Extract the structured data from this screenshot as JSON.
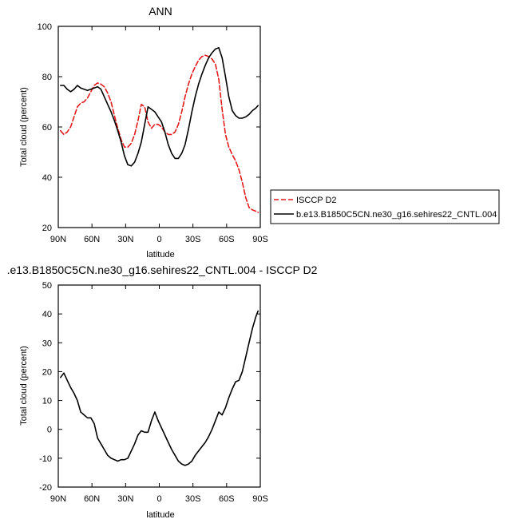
{
  "chart_data": [
    {
      "type": "line",
      "title": "ANN",
      "xlabel": "latitude",
      "ylabel": "Total cloud (percent)",
      "xlim": [
        90,
        -90
      ],
      "ylim": [
        20,
        100
      ],
      "x_ticks": [
        90,
        60,
        30,
        0,
        -30,
        -60,
        -90
      ],
      "x_tick_labels": [
        "90N",
        "60N",
        "30N",
        "0",
        "30S",
        "60S",
        "90S"
      ],
      "y_ticks": [
        20,
        40,
        60,
        80,
        100
      ],
      "y_tick_labels": [
        "20",
        "40",
        "60",
        "80",
        "100"
      ],
      "legend_position": "right",
      "series": [
        {
          "name": "ISCCP D2",
          "color": "#e31a1c",
          "dash": "dashed",
          "x": [
            88,
            85,
            82,
            79,
            76,
            73,
            70,
            67,
            64,
            61,
            58,
            55,
            52,
            49,
            46,
            43,
            40,
            37,
            34,
            31,
            28,
            25,
            22,
            19,
            16,
            13,
            10,
            7,
            4,
            1,
            -2,
            -5,
            -8,
            -11,
            -14,
            -17,
            -20,
            -23,
            -26,
            -29,
            -32,
            -35,
            -38,
            -41,
            -44,
            -47,
            -50,
            -53,
            -56,
            -59,
            -62,
            -65,
            -68,
            -71,
            -74,
            -77,
            -80,
            -83,
            -86,
            -88
          ],
          "y": [
            58.5,
            57.0,
            58.0,
            60.0,
            64.0,
            68.0,
            69.5,
            70.0,
            71.5,
            74.0,
            76.5,
            77.5,
            77.0,
            76.0,
            73.5,
            70.0,
            64.5,
            59.5,
            55.0,
            52.0,
            52.0,
            53.5,
            57.0,
            62.5,
            69.0,
            68.0,
            62.0,
            59.5,
            61.0,
            61.0,
            60.0,
            58.0,
            57.0,
            57.0,
            58.0,
            61.0,
            66.0,
            72.0,
            77.0,
            81.0,
            84.0,
            86.5,
            88.0,
            88.5,
            88.0,
            87.0,
            85.0,
            79.0,
            67.0,
            57.0,
            52.0,
            49.0,
            46.5,
            43.0,
            38.0,
            32.0,
            28.0,
            27.0,
            26.5,
            26.0
          ]
        },
        {
          "name": "b.e13.B1850C5CN.ne30_g16.sehires22_CNTL.004",
          "color": "#000000",
          "dash": "solid",
          "x": [
            88,
            85,
            82,
            79,
            76,
            73,
            70,
            67,
            64,
            61,
            58,
            55,
            52,
            49,
            46,
            43,
            40,
            37,
            34,
            31,
            28,
            25,
            22,
            19,
            16,
            13,
            10,
            7,
            4,
            1,
            -2,
            -5,
            -8,
            -11,
            -14,
            -17,
            -20,
            -23,
            -26,
            -29,
            -32,
            -35,
            -38,
            -41,
            -44,
            -47,
            -50,
            -53,
            -56,
            -59,
            -62,
            -65,
            -68,
            -71,
            -74,
            -77,
            -80,
            -83,
            -86,
            -88
          ],
          "y": [
            76.5,
            76.5,
            75.0,
            74.0,
            75.0,
            76.5,
            75.5,
            75.0,
            74.5,
            75.0,
            75.5,
            76.0,
            75.0,
            72.0,
            69.0,
            66.0,
            62.5,
            58.5,
            54.0,
            48.5,
            45.0,
            44.5,
            46.0,
            49.5,
            54.0,
            61.0,
            68.0,
            67.0,
            66.0,
            64.0,
            62.0,
            58.0,
            53.0,
            49.5,
            47.5,
            47.5,
            49.5,
            53.0,
            59.0,
            66.0,
            72.0,
            77.0,
            81.0,
            84.5,
            87.5,
            89.5,
            91.0,
            91.5,
            87.5,
            80.0,
            72.0,
            66.5,
            64.5,
            63.5,
            63.5,
            64.0,
            65.0,
            66.5,
            67.5,
            68.5
          ]
        }
      ]
    },
    {
      "type": "line",
      "title": ".e13.B1850C5CN.ne30_g16.sehires22_CNTL.004 - ISCCP D2",
      "xlabel": "latitude",
      "ylabel": "Total cloud (percent)",
      "xlim": [
        90,
        -90
      ],
      "ylim": [
        -20,
        50
      ],
      "x_ticks": [
        90,
        60,
        30,
        0,
        -30,
        -60,
        -90
      ],
      "x_tick_labels": [
        "90N",
        "60N",
        "30N",
        "0",
        "30S",
        "60S",
        "90S"
      ],
      "y_ticks": [
        -20,
        -10,
        0,
        10,
        20,
        30,
        40,
        50
      ],
      "y_tick_labels": [
        "-20",
        "-10",
        "0",
        "10",
        "20",
        "30",
        "40",
        "50"
      ],
      "series": [
        {
          "color": "#000000",
          "dash": "solid",
          "x": [
            88,
            85,
            82,
            79,
            76,
            73,
            70,
            67,
            64,
            61,
            58,
            55,
            52,
            49,
            46,
            43,
            40,
            37,
            34,
            31,
            28,
            25,
            22,
            19,
            16,
            13,
            10,
            7,
            4,
            1,
            -2,
            -5,
            -8,
            -11,
            -14,
            -17,
            -20,
            -23,
            -26,
            -29,
            -32,
            -35,
            -38,
            -41,
            -44,
            -47,
            -50,
            -53,
            -56,
            -59,
            -62,
            -65,
            -68,
            -71,
            -74,
            -77,
            -80,
            -83,
            -86,
            -88
          ],
          "y": [
            18.0,
            19.5,
            17.0,
            14.5,
            12.5,
            10.0,
            6.0,
            5.0,
            4.0,
            4.0,
            2.0,
            -3.0,
            -5.0,
            -7.0,
            -9.0,
            -10.0,
            -10.5,
            -11.0,
            -10.5,
            -10.5,
            -10.0,
            -7.5,
            -5.0,
            -2.0,
            -0.5,
            -1.0,
            -1.0,
            3.0,
            6.0,
            3.0,
            0.5,
            -2.0,
            -4.5,
            -7.0,
            -9.0,
            -11.0,
            -12.0,
            -12.5,
            -12.0,
            -11.0,
            -9.0,
            -7.5,
            -6.0,
            -4.5,
            -2.5,
            0.0,
            3.0,
            6.0,
            5.0,
            7.5,
            11.0,
            14.0,
            16.5,
            17.0,
            20.0,
            25.0,
            30.0,
            35.0,
            39.0,
            41.0
          ]
        }
      ]
    }
  ]
}
